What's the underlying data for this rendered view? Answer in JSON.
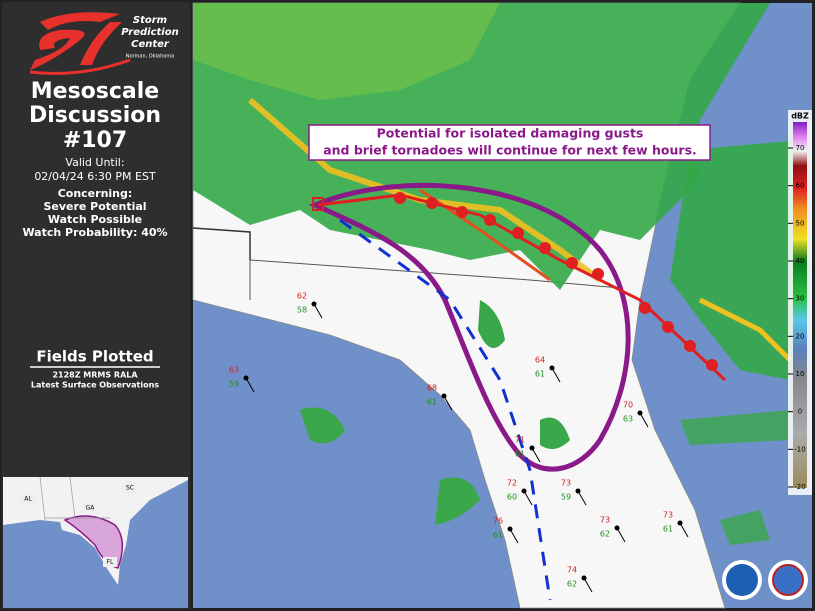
{
  "header": {
    "logo_line1": "Storm",
    "logo_line2": "Prediction",
    "logo_line3": "Center",
    "logo_location": "Norman, Oklahoma",
    "title_line1": "Mesoscale",
    "title_line2": "Discussion",
    "number": "#107",
    "valid_label": "Valid Until:",
    "valid_time": "02/04/24 6:30 PM EST",
    "concerning_label": "Concerning:",
    "concerning_line1": "Severe Potential",
    "concerning_line2": "Watch Possible",
    "probability": "Watch Probability: 40%"
  },
  "fields": {
    "title": "Fields Plotted",
    "line1": "2128Z MRMS RALA",
    "line2": "Latest Surface Observations"
  },
  "annotation": {
    "line1": "Potential for isolated damaging gusts",
    "line2": "and brief tornadoes will continue for next few hours."
  },
  "colorbar": {
    "unit": "dBZ",
    "ticks": [
      70,
      60,
      50,
      40,
      30,
      20,
      10,
      0,
      -10,
      -20
    ]
  },
  "inset": {
    "labels": [
      "AL",
      "GA",
      "SC",
      "FL"
    ]
  },
  "stations": [
    {
      "temp": 62,
      "dew": 58
    },
    {
      "temp": 63,
      "dew": 59
    },
    {
      "temp": 68,
      "dew": 61
    },
    {
      "temp": 64,
      "dew": 61
    },
    {
      "temp": 70,
      "dew": 63
    },
    {
      "temp": 71,
      "dew": 61
    },
    {
      "temp": 72,
      "dew": 60
    },
    {
      "temp": 73,
      "dew": 59
    },
    {
      "temp": 76,
      "dew": 61
    },
    {
      "temp": 73,
      "dew": 62
    },
    {
      "temp": 74,
      "dew": 62
    },
    {
      "temp": 73,
      "dew": 61
    }
  ]
}
